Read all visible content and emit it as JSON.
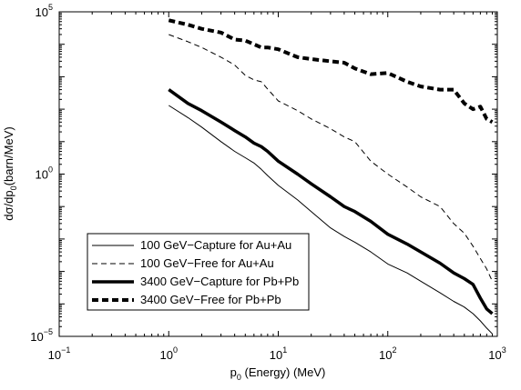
{
  "chart_data": {
    "type": "line",
    "xlabel": "p",
    "xlabel_sub": "0",
    "xlabel_rest": " (Energy) (MeV)",
    "ylabel_main": "dσ/dp",
    "ylabel_sub": "0",
    "ylabel_rest": "(barn/MeV)",
    "xscale": "log",
    "yscale": "log",
    "xlim": [
      0.1,
      1000
    ],
    "ylim": [
      1e-05,
      100000
    ],
    "x_ticks": [
      {
        "base": "10",
        "exp": "−1",
        "value": 0.1
      },
      {
        "base": "10",
        "exp": "0",
        "value": 1
      },
      {
        "base": "10",
        "exp": "1",
        "value": 10
      },
      {
        "base": "10",
        "exp": "2",
        "value": 100
      },
      {
        "base": "10",
        "exp": "3",
        "value": 1000
      }
    ],
    "y_ticks": [
      {
        "base": "10",
        "exp": "−5",
        "value": 1e-05
      },
      {
        "base": "10",
        "exp": "0",
        "value": 1
      },
      {
        "base": "10",
        "exp": "5",
        "value": 100000
      }
    ],
    "legend_position": "bottom-left",
    "series": [
      {
        "name": "100 GeV−Capture for Au+Au",
        "style": "solid-thin",
        "color": "#000000",
        "x": [
          1,
          1.5,
          2,
          3,
          4,
          5,
          6,
          7,
          8,
          10,
          15,
          20,
          30,
          40,
          50,
          70,
          100,
          150,
          200,
          300,
          400,
          500,
          600,
          700,
          800,
          900
        ],
        "y": [
          130,
          55,
          28,
          10,
          5,
          3.2,
          2.2,
          1.4,
          0.9,
          0.45,
          0.16,
          0.07,
          0.022,
          0.012,
          0.008,
          0.004,
          0.0017,
          0.0009,
          0.0005,
          0.00022,
          0.00012,
          8e-05,
          5e-05,
          3e-05,
          1.8e-05,
          1.2e-05
        ]
      },
      {
        "name": "100 GeV−Free for Au+Au",
        "style": "dashed-thin",
        "color": "#000000",
        "x": [
          1,
          1.5,
          2,
          3,
          4,
          5,
          6,
          7,
          8,
          10,
          15,
          20,
          30,
          40,
          50,
          70,
          100,
          150,
          200,
          300,
          400,
          500,
          600,
          700,
          800,
          900
        ],
        "y": [
          20000,
          12000,
          8000,
          4000,
          2300,
          1100,
          800,
          700,
          420,
          180,
          90,
          50,
          25,
          14,
          10,
          2.5,
          1,
          0.4,
          0.2,
          0.1,
          0.03,
          0.015,
          0.006,
          0.0025,
          0.0012,
          0.0005
        ]
      },
      {
        "name": "3400 GeV−Capture for Pb+Pb",
        "style": "solid-thick",
        "color": "#000000",
        "x": [
          1,
          1.5,
          2,
          3,
          4,
          5,
          6,
          7,
          8,
          10,
          15,
          20,
          30,
          40,
          50,
          70,
          100,
          150,
          200,
          300,
          400,
          500,
          600,
          700,
          800,
          900
        ],
        "y": [
          400,
          150,
          90,
          40,
          22,
          14,
          9,
          7,
          5,
          2.5,
          1,
          0.5,
          0.2,
          0.1,
          0.07,
          0.035,
          0.014,
          0.007,
          0.004,
          0.0018,
          0.0009,
          0.0006,
          0.0004,
          0.00015,
          7e-05,
          5e-05
        ]
      },
      {
        "name": "3400 GeV−Free for Pb+Pb",
        "style": "dashed-thick",
        "color": "#000000",
        "x": [
          1,
          1.5,
          2,
          3,
          4,
          5,
          6,
          7,
          8,
          10,
          15,
          20,
          30,
          40,
          50,
          70,
          100,
          150,
          200,
          300,
          400,
          500,
          600,
          700,
          800,
          900
        ],
        "y": [
          55000,
          40000,
          30000,
          23000,
          14000,
          13000,
          10000,
          8000,
          8000,
          7000,
          4000,
          3500,
          3000,
          2700,
          1800,
          1200,
          1300,
          700,
          500,
          400,
          400,
          150,
          100,
          120,
          50,
          40
        ]
      }
    ]
  }
}
